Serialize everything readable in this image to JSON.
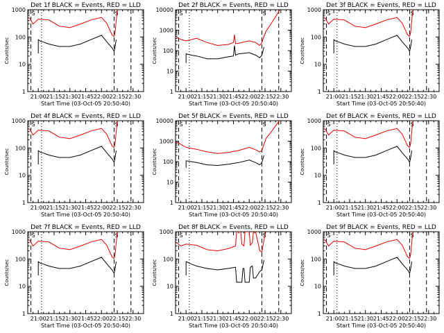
{
  "chart_data": [
    {
      "type": "line",
      "title": "Det 1f BLACK = Events, RED = LLD",
      "xlabel": "Start Time (03-Oct-05 20:50:40)",
      "ylabel": "Counts/sec",
      "xticks": [
        "21:00",
        "21:15",
        "21:30",
        "21:45",
        "22:00",
        "22:15",
        "22:30"
      ],
      "yticks": [
        "1",
        "10",
        "100",
        "1000"
      ],
      "ylim": [
        1,
        1000
      ],
      "yscale": "log",
      "xlim_min": [
        -10,
        100
      ],
      "markers_top": [
        "S",
        "S"
      ],
      "series": [
        {
          "color": "#e00000",
          "x": [
            -9,
            -8,
            -5,
            0,
            10,
            20,
            30,
            40,
            50,
            60,
            65,
            70,
            72,
            73,
            74,
            75,
            76
          ],
          "y": [
            500,
            480,
            300,
            450,
            420,
            250,
            220,
            300,
            420,
            520,
            320,
            120,
            105,
            150,
            400,
            900,
            1100
          ]
        },
        {
          "color": "#000000",
          "x": [
            0,
            0,
            2,
            5,
            10,
            20,
            30,
            40,
            50,
            60,
            66,
            70,
            72,
            73,
            74
          ],
          "y": [
            25,
            80,
            70,
            65,
            55,
            45,
            45,
            55,
            80,
            115,
            60,
            40,
            30,
            45,
            80
          ]
        }
      ],
      "vlines": [
        {
          "x": -7,
          "style": "dashed"
        },
        {
          "x": 3,
          "style": "dotted"
        },
        {
          "x": 72,
          "style": "dashed"
        },
        {
          "x": 88,
          "style": "dashed"
        }
      ]
    },
    {
      "type": "line",
      "title": "Det 2f BLACK = Events, RED = LLD",
      "xlabel": "Start Time (03-Oct-05 20:50:40)",
      "ylabel": "Counts/sec",
      "xticks": [
        "21:00",
        "21:15",
        "21:30",
        "21:45",
        "22:00",
        "22:15",
        "22:30"
      ],
      "yticks": [
        "1",
        "10",
        "100",
        "1000",
        "10000"
      ],
      "ylim": [
        1,
        10000
      ],
      "yscale": "log",
      "xlim_min": [
        -10,
        100
      ],
      "markers_top": [
        "S",
        "S"
      ],
      "series": [
        {
          "color": "#e00000",
          "x": [
            -9,
            -5,
            0,
            10,
            20,
            30,
            40,
            45,
            46,
            47,
            50,
            60,
            66,
            70,
            72,
            74,
            76,
            80,
            88,
            90
          ],
          "y": [
            450,
            350,
            300,
            400,
            250,
            180,
            200,
            250,
            600,
            220,
            230,
            300,
            250,
            180,
            250,
            500,
            900,
            1800,
            8000,
            12000
          ]
        },
        {
          "color": "#000000",
          "x": [
            0,
            0,
            5,
            10,
            20,
            30,
            40,
            45,
            46,
            47,
            50,
            60,
            66,
            70,
            72,
            74
          ],
          "y": [
            25,
            70,
            60,
            55,
            40,
            40,
            50,
            55,
            180,
            60,
            70,
            80,
            60,
            45,
            60,
            150
          ]
        }
      ],
      "vlines": [
        {
          "x": -7,
          "style": "dashed"
        },
        {
          "x": 3,
          "style": "dotted"
        },
        {
          "x": 72,
          "style": "dashed"
        },
        {
          "x": 88,
          "style": "dashed"
        }
      ]
    },
    {
      "type": "line",
      "title": "Det 3f BLACK = Events, RED = LLD",
      "xlabel": "Start Time (03-Oct-05 20:50:40)",
      "ylabel": "Counts/sec",
      "xticks": [
        "21:00",
        "21:15",
        "21:30",
        "21:45",
        "22:00",
        "22:15",
        "22:30"
      ],
      "yticks": [
        "1",
        "10",
        "100",
        "1000"
      ],
      "ylim": [
        1,
        1000
      ],
      "yscale": "log",
      "xlim_min": [
        -10,
        100
      ],
      "markers_top": [
        "S",
        "S"
      ],
      "series": [
        {
          "color": "#e00000",
          "x": [
            -9,
            -8,
            -5,
            0,
            10,
            20,
            30,
            40,
            50,
            60,
            65,
            70,
            72,
            73,
            74,
            75,
            76
          ],
          "y": [
            500,
            480,
            300,
            450,
            420,
            250,
            220,
            300,
            420,
            520,
            320,
            120,
            105,
            150,
            400,
            900,
            1100
          ]
        },
        {
          "color": "#000000",
          "x": [
            0,
            0,
            2,
            5,
            10,
            20,
            30,
            40,
            50,
            60,
            66,
            70,
            72,
            73,
            74
          ],
          "y": [
            25,
            80,
            70,
            65,
            55,
            45,
            45,
            55,
            80,
            115,
            60,
            40,
            30,
            45,
            80
          ]
        }
      ],
      "vlines": [
        {
          "x": -7,
          "style": "dashed"
        },
        {
          "x": 3,
          "style": "dotted"
        },
        {
          "x": 72,
          "style": "dashed"
        },
        {
          "x": 88,
          "style": "dashed"
        }
      ]
    },
    {
      "type": "line",
      "title": "Det 4f BLACK = Events, RED = LLD",
      "xlabel": "Start Time (03-Oct-05 20:50:40)",
      "ylabel": "Counts/sec",
      "xticks": [
        "21:00",
        "21:15",
        "21:30",
        "21:45",
        "22:00",
        "22:15",
        "22:30"
      ],
      "yticks": [
        "1",
        "10",
        "100",
        "1000"
      ],
      "ylim": [
        1,
        1000
      ],
      "yscale": "log",
      "xlim_min": [
        -10,
        100
      ],
      "markers_top": [
        "S",
        "S"
      ],
      "series": [
        {
          "color": "#e00000",
          "x": [
            -9,
            -8,
            -5,
            0,
            10,
            20,
            30,
            40,
            50,
            60,
            65,
            70,
            72,
            73,
            74,
            75,
            76
          ],
          "y": [
            500,
            480,
            300,
            450,
            420,
            250,
            220,
            300,
            420,
            520,
            320,
            120,
            105,
            150,
            400,
            900,
            1100
          ]
        },
        {
          "color": "#000000",
          "x": [
            0,
            0,
            2,
            5,
            10,
            20,
            30,
            40,
            50,
            60,
            66,
            70,
            72,
            73,
            74
          ],
          "y": [
            25,
            80,
            70,
            65,
            55,
            45,
            45,
            55,
            80,
            115,
            60,
            40,
            30,
            45,
            80
          ]
        }
      ],
      "vlines": [
        {
          "x": -7,
          "style": "dashed"
        },
        {
          "x": 3,
          "style": "dotted"
        },
        {
          "x": 72,
          "style": "dashed"
        },
        {
          "x": 88,
          "style": "dashed"
        }
      ]
    },
    {
      "type": "line",
      "title": "Det 5f BLACK = Events, RED = LLD",
      "xlabel": "Start Time (03-Oct-05 20:50:40)",
      "ylabel": "Counts/sec",
      "xticks": [
        "21:00",
        "21:15",
        "21:30",
        "21:45",
        "22:00",
        "22:15",
        "22:30"
      ],
      "yticks": [
        "1",
        "10",
        "100",
        "1000",
        "10000"
      ],
      "ylim": [
        1,
        10000
      ],
      "yscale": "log",
      "xlim_min": [
        -10,
        100
      ],
      "markers_top": [
        "S",
        "S"
      ],
      "series": [
        {
          "color": "#e00000",
          "x": [
            -9,
            -5,
            0,
            10,
            20,
            30,
            40,
            50,
            60,
            66,
            70,
            72,
            74,
            76,
            80,
            88,
            90
          ],
          "y": [
            900,
            700,
            500,
            400,
            300,
            250,
            280,
            350,
            500,
            380,
            300,
            350,
            700,
            1400,
            2500,
            9000,
            12000
          ]
        },
        {
          "color": "#000000",
          "x": [
            0,
            0,
            5,
            10,
            20,
            30,
            40,
            50,
            60,
            66,
            70,
            72,
            74
          ],
          "y": [
            50,
            110,
            100,
            90,
            70,
            65,
            75,
            90,
            120,
            90,
            70,
            90,
            200
          ]
        }
      ],
      "vlines": [
        {
          "x": -7,
          "style": "dashed"
        },
        {
          "x": 3,
          "style": "dotted"
        },
        {
          "x": 72,
          "style": "dashed"
        },
        {
          "x": 88,
          "style": "dashed"
        }
      ]
    },
    {
      "type": "line",
      "title": "Det 6f BLACK = Events, RED = LLD",
      "xlabel": "Start Time (03-Oct-05 20:50:40)",
      "ylabel": "Counts/sec",
      "xticks": [
        "21:00",
        "21:15",
        "21:30",
        "21:45",
        "22:00",
        "22:15",
        "22:30"
      ],
      "yticks": [
        "1",
        "10",
        "100",
        "1000"
      ],
      "ylim": [
        1,
        1000
      ],
      "yscale": "log",
      "xlim_min": [
        -10,
        100
      ],
      "markers_top": [
        "S",
        "S"
      ],
      "series": [
        {
          "color": "#e00000",
          "x": [
            -9,
            -8,
            -5,
            0,
            10,
            20,
            30,
            40,
            50,
            60,
            65,
            70,
            72,
            73,
            74,
            75,
            76
          ],
          "y": [
            500,
            480,
            300,
            450,
            420,
            250,
            220,
            300,
            420,
            520,
            320,
            120,
            105,
            150,
            400,
            900,
            1100
          ]
        },
        {
          "color": "#000000",
          "x": [
            0,
            0,
            2,
            5,
            10,
            20,
            30,
            40,
            50,
            60,
            66,
            70,
            72,
            73,
            74
          ],
          "y": [
            25,
            80,
            70,
            65,
            55,
            45,
            45,
            55,
            80,
            115,
            60,
            40,
            30,
            45,
            80
          ]
        }
      ],
      "vlines": [
        {
          "x": -7,
          "style": "dashed"
        },
        {
          "x": 3,
          "style": "dotted"
        },
        {
          "x": 72,
          "style": "dashed"
        },
        {
          "x": 88,
          "style": "dashed"
        }
      ]
    },
    {
      "type": "line",
      "title": "Det 7f BLACK = Events, RED = LLD",
      "xlabel": "Start Time (03-Oct-05 20:50:40)",
      "ylabel": "Counts/sec",
      "xticks": [
        "21:00",
        "21:15",
        "21:30",
        "21:45",
        "22:00",
        "22:15",
        "22:30"
      ],
      "yticks": [
        "1",
        "10",
        "100",
        "1000"
      ],
      "ylim": [
        1,
        1000
      ],
      "yscale": "log",
      "xlim_min": [
        -10,
        100
      ],
      "markers_top": [
        "S",
        "S"
      ],
      "series": [
        {
          "color": "#e00000",
          "x": [
            -9,
            -8,
            -5,
            0,
            10,
            20,
            30,
            40,
            50,
            60,
            65,
            70,
            72,
            73,
            74,
            75,
            76
          ],
          "y": [
            500,
            480,
            300,
            450,
            420,
            250,
            220,
            300,
            420,
            520,
            320,
            120,
            105,
            150,
            400,
            900,
            1100
          ]
        },
        {
          "color": "#000000",
          "x": [
            0,
            0,
            2,
            5,
            10,
            20,
            30,
            40,
            50,
            60,
            66,
            70,
            72,
            73,
            74
          ],
          "y": [
            25,
            80,
            70,
            65,
            55,
            45,
            45,
            55,
            80,
            115,
            60,
            40,
            30,
            45,
            80
          ]
        }
      ],
      "vlines": [
        {
          "x": -7,
          "style": "dashed"
        },
        {
          "x": 3,
          "style": "dotted"
        },
        {
          "x": 72,
          "style": "dashed"
        },
        {
          "x": 88,
          "style": "dashed"
        }
      ]
    },
    {
      "type": "line",
      "title": "Det 8f BLACK = Events, RED = LLD",
      "xlabel": "Start Time (03-Oct-05 20:50:40)",
      "ylabel": "Counts/sec",
      "xticks": [
        "21:00",
        "21:15",
        "21:30",
        "21:45",
        "22:00",
        "22:15",
        "22:30"
      ],
      "yticks": [
        "1",
        "10",
        "100",
        "1000"
      ],
      "ylim": [
        1,
        1000
      ],
      "yscale": "log",
      "xlim_min": [
        -10,
        100
      ],
      "markers_top": [
        "S",
        "S"
      ],
      "series": [
        {
          "color": "#e00000",
          "x": [
            -9,
            -5,
            0,
            10,
            20,
            30,
            40,
            47,
            48,
            52,
            53,
            55,
            56,
            60,
            61,
            63,
            64,
            66,
            70,
            72,
            74,
            76
          ],
          "y": [
            400,
            300,
            350,
            320,
            220,
            200,
            240,
            300,
            1000,
            1000,
            350,
            300,
            1000,
            1000,
            320,
            400,
            1000,
            1000,
            200,
            180,
            500,
            1100
          ]
        },
        {
          "color": "#000000",
          "x": [
            0,
            0,
            5,
            10,
            20,
            30,
            40,
            47,
            48,
            53,
            54,
            55,
            56,
            60,
            61,
            63,
            64,
            66,
            70,
            72,
            74
          ],
          "y": [
            25,
            80,
            65,
            55,
            45,
            40,
            45,
            50,
            14,
            14,
            45,
            45,
            14,
            14,
            50,
            55,
            20,
            20,
            35,
            40,
            90
          ]
        }
      ],
      "vlines": [
        {
          "x": -7,
          "style": "dashed"
        },
        {
          "x": 3,
          "style": "dotted"
        },
        {
          "x": 72,
          "style": "dashed"
        },
        {
          "x": 88,
          "style": "dashed"
        }
      ]
    },
    {
      "type": "line",
      "title": "Det 9f BLACK = Events, RED = LLD",
      "xlabel": "Start Time (03-Oct-05 20:50:40)",
      "ylabel": "Counts/sec",
      "xticks": [
        "21:00",
        "21:15",
        "21:30",
        "21:45",
        "22:00",
        "22:15",
        "22:30"
      ],
      "yticks": [
        "1",
        "10",
        "100",
        "1000"
      ],
      "ylim": [
        1,
        1000
      ],
      "yscale": "log",
      "xlim_min": [
        -10,
        100
      ],
      "markers_top": [
        "S",
        "S"
      ],
      "series": [
        {
          "color": "#e00000",
          "x": [
            -9,
            -8,
            -5,
            0,
            10,
            20,
            30,
            40,
            50,
            60,
            65,
            70,
            72,
            73,
            74,
            75,
            76
          ],
          "y": [
            500,
            480,
            300,
            450,
            420,
            250,
            220,
            300,
            420,
            520,
            320,
            120,
            105,
            150,
            400,
            900,
            1100
          ]
        },
        {
          "color": "#000000",
          "x": [
            0,
            0,
            2,
            5,
            10,
            20,
            30,
            40,
            50,
            60,
            66,
            70,
            72,
            73,
            74
          ],
          "y": [
            25,
            80,
            70,
            65,
            55,
            45,
            45,
            55,
            80,
            115,
            60,
            40,
            30,
            45,
            80
          ]
        }
      ],
      "vlines": [
        {
          "x": -7,
          "style": "dashed"
        },
        {
          "x": 3,
          "style": "dotted"
        },
        {
          "x": 72,
          "style": "dashed"
        },
        {
          "x": 88,
          "style": "dashed"
        }
      ]
    }
  ]
}
